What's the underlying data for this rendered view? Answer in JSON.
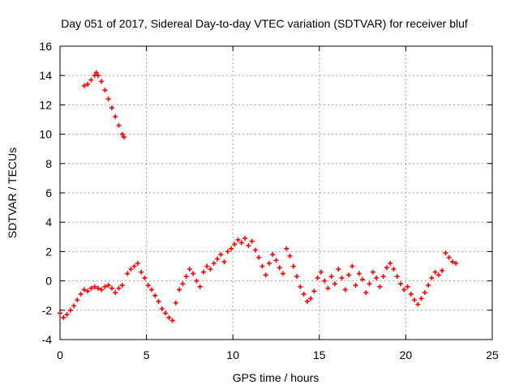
{
  "chart_data": {
    "type": "scatter",
    "title": "Day 051 of 2017, Sidereal Day-to-day VTEC variation (SDTVAR) for receiver bluf",
    "xlabel": "GPS time / hours",
    "ylabel": "SDTVAR / TECUs",
    "xlim": [
      0,
      25
    ],
    "ylim": [
      -4,
      16
    ],
    "xticks": [
      0,
      5,
      10,
      15,
      20,
      25
    ],
    "yticks": [
      -4,
      -2,
      0,
      2,
      4,
      6,
      8,
      10,
      12,
      14,
      16
    ],
    "grid": true,
    "marker": "+",
    "series_color": "#ff0000",
    "series": [
      {
        "name": "SDTVAR",
        "x": [
          0.0,
          0.2,
          0.4,
          0.6,
          0.8,
          1.0,
          1.2,
          1.4,
          1.6,
          1.8,
          2.0,
          2.2,
          2.4,
          2.6,
          2.8,
          3.0,
          3.2,
          3.4,
          3.6,
          1.4,
          1.6,
          1.8,
          2.0,
          2.1,
          2.2,
          2.4,
          2.6,
          2.8,
          3.0,
          3.2,
          3.4,
          3.6,
          3.7,
          3.9,
          4.1,
          4.3,
          4.5,
          4.7,
          4.9,
          5.1,
          5.3,
          5.5,
          5.7,
          5.9,
          6.1,
          6.3,
          6.5,
          6.7,
          6.9,
          7.1,
          7.3,
          7.5,
          7.7,
          7.9,
          8.1,
          8.3,
          8.5,
          8.7,
          8.9,
          9.1,
          9.3,
          9.5,
          9.7,
          9.9,
          10.1,
          10.3,
          10.5,
          10.7,
          10.9,
          11.1,
          11.3,
          11.5,
          11.7,
          11.9,
          12.1,
          12.3,
          12.5,
          12.7,
          12.9,
          13.1,
          13.3,
          13.5,
          13.7,
          13.9,
          14.1,
          14.3,
          14.5,
          14.7,
          14.9,
          15.1,
          15.3,
          15.5,
          15.7,
          15.9,
          16.1,
          16.3,
          16.5,
          16.7,
          16.9,
          17.1,
          17.3,
          17.5,
          17.7,
          17.9,
          18.1,
          18.3,
          18.5,
          18.7,
          18.9,
          19.1,
          19.3,
          19.5,
          19.7,
          19.9,
          20.1,
          20.3,
          20.5,
          20.7,
          20.9,
          21.1,
          21.3,
          21.5,
          21.7,
          21.9,
          22.1,
          22.3,
          22.5,
          22.7,
          22.9
        ],
        "y": [
          -2.2,
          -2.5,
          -2.3,
          -2.0,
          -1.7,
          -1.3,
          -0.9,
          -0.6,
          -0.7,
          -0.5,
          -0.4,
          -0.5,
          -0.6,
          -0.4,
          -0.3,
          -0.5,
          -0.8,
          -0.5,
          -0.3,
          13.3,
          13.4,
          13.7,
          14.0,
          14.2,
          14.0,
          13.6,
          13.0,
          12.4,
          11.8,
          11.2,
          10.6,
          10.0,
          9.8,
          0.5,
          0.8,
          1.0,
          1.2,
          0.6,
          0.2,
          -0.3,
          -0.6,
          -1.0,
          -1.4,
          -1.9,
          -2.2,
          -2.5,
          -2.7,
          -1.5,
          -0.6,
          -0.2,
          0.3,
          0.8,
          0.5,
          0.0,
          -0.4,
          0.6,
          1.0,
          0.8,
          1.2,
          1.5,
          1.8,
          1.3,
          2.0,
          2.2,
          2.5,
          2.8,
          2.6,
          2.9,
          2.4,
          2.7,
          2.1,
          1.6,
          1.0,
          0.4,
          1.2,
          1.8,
          1.4,
          0.9,
          0.5,
          2.2,
          1.7,
          1.0,
          0.3,
          -0.4,
          -0.9,
          -1.4,
          -1.2,
          -0.7,
          0.2,
          0.6,
          0.0,
          -0.5,
          0.3,
          -0.2,
          0.8,
          0.2,
          -0.6,
          0.4,
          1.0,
          -0.3,
          0.5,
          0.1,
          -0.8,
          -0.2,
          0.6,
          0.2,
          -0.4,
          0.3,
          0.9,
          1.2,
          0.8,
          0.3,
          -0.2,
          -0.6,
          -0.4,
          -0.9,
          -1.3,
          -1.6,
          -1.2,
          -0.8,
          -0.3,
          0.2,
          0.6,
          0.4,
          0.7,
          1.9,
          1.6,
          1.3,
          1.2
        ]
      }
    ]
  }
}
